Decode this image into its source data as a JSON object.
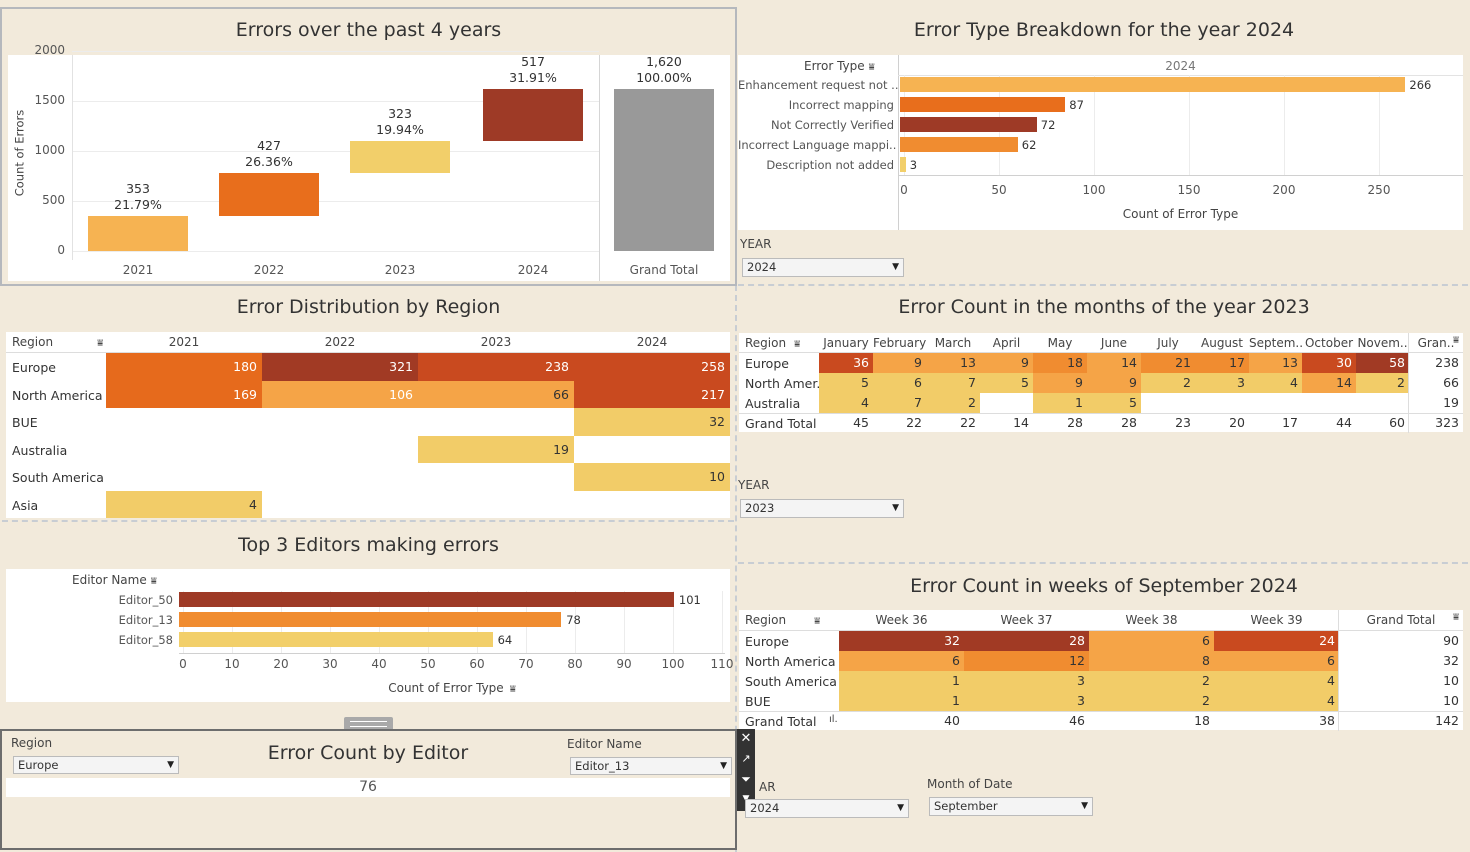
{
  "colors": {
    "c1": "#f6b352",
    "c2": "#e86e1c",
    "c3": "#f2cf6a",
    "c4": "#9e3a26",
    "gray": "#999999",
    "hm_dark": "#a13a24",
    "hm_mid": "#c94a1f",
    "hm_orange": "#e66a1c",
    "hm_lo": "#f5a447",
    "hm_lightest": "#f2cc68",
    "background": "#f2eadb"
  },
  "waterfall": {
    "title": "Errors over the past 4 years",
    "ylabel": "Count of Errors",
    "yticks": [
      "2000",
      "1500",
      "1000",
      "500",
      "0"
    ],
    "categories": [
      "2021",
      "2022",
      "2023",
      "2024",
      "Grand Total"
    ]
  },
  "chart_data": [
    {
      "type": "bar",
      "title": "Errors over the past 4 years",
      "ylabel": "Count of Errors",
      "categories": [
        "2021",
        "2022",
        "2023",
        "2024",
        "Grand Total"
      ],
      "values": [
        353,
        427,
        323,
        517,
        1620
      ],
      "value_labels": [
        "353",
        "427",
        "323",
        "517",
        "1,620"
      ],
      "percent_labels": [
        "21.79%",
        "26.36%",
        "19.94%",
        "31.91%",
        "100.00%"
      ],
      "ylim": [
        0,
        2000
      ]
    },
    {
      "type": "bar",
      "title": "Error Type Breakdown for the year 2024",
      "xlabel": "Count of Error Type",
      "categories": [
        "Enhancement request not ..",
        "Incorrect mapping",
        "Not Correctly Verified",
        "Incorrect Language mappi..",
        "Description not added"
      ],
      "values": [
        266,
        87,
        72,
        62,
        3
      ],
      "xlim": [
        0,
        290
      ]
    },
    {
      "type": "bar",
      "title": "Top 3 Editors making errors",
      "xlabel": "Count of Error Type",
      "categories": [
        "Editor_50",
        "Editor_13",
        "Editor_58"
      ],
      "values": [
        101,
        78,
        64
      ],
      "xlim": [
        0,
        112
      ]
    }
  ],
  "error_type": {
    "title": "Error Type Breakdown for the year 2024",
    "col_header": "Error Type",
    "year_header": "2024",
    "xlabel": "Count of Error Type",
    "xticks": [
      "0",
      "50",
      "100",
      "150",
      "200",
      "250"
    ]
  },
  "year_filter1": {
    "label": "YEAR",
    "value": "2024"
  },
  "region_dist": {
    "title": "Error Distribution by Region",
    "col_header": "Region",
    "years": [
      "2021",
      "2022",
      "2023",
      "2024"
    ],
    "rows": [
      {
        "region": "Europe",
        "values": [
          "180",
          "321",
          "238",
          "258"
        ]
      },
      {
        "region": "North America",
        "values": [
          "169",
          "106",
          "66",
          "217"
        ]
      },
      {
        "region": "BUE",
        "values": [
          "",
          "",
          "",
          "32"
        ]
      },
      {
        "region": "Australia",
        "values": [
          "",
          "",
          "19",
          ""
        ]
      },
      {
        "region": "South America",
        "values": [
          "",
          "",
          "",
          "10"
        ]
      },
      {
        "region": "Asia",
        "values": [
          "4",
          "",
          "",
          ""
        ]
      }
    ]
  },
  "months": {
    "title": "Error Count in the months of the year 2023",
    "col_header": "Region",
    "headers": [
      "January",
      "February",
      "March",
      "April",
      "May",
      "June",
      "July",
      "August",
      "Septem..",
      "October",
      "Novem..",
      "Gran.."
    ],
    "rows": [
      {
        "region": "Europe",
        "values": [
          "36",
          "9",
          "13",
          "9",
          "18",
          "14",
          "21",
          "17",
          "13",
          "30",
          "58"
        ],
        "total": "238"
      },
      {
        "region": "North Amer..",
        "values": [
          "5",
          "6",
          "7",
          "5",
          "9",
          "9",
          "2",
          "3",
          "4",
          "14",
          "2"
        ],
        "total": "66"
      },
      {
        "region": "Australia",
        "values": [
          "4",
          "7",
          "2",
          "",
          "1",
          "5",
          "",
          "",
          "",
          "",
          ""
        ],
        "total": "19"
      }
    ],
    "grand_total_label": "Grand Total",
    "grand_totals": [
      "45",
      "22",
      "22",
      "14",
      "28",
      "28",
      "23",
      "20",
      "17",
      "44",
      "60"
    ],
    "grand_total_total": "323"
  },
  "year_filter2": {
    "label": "YEAR",
    "value": "2023"
  },
  "editors": {
    "title": "Top 3 Editors making errors",
    "col_header": "Editor Name",
    "xlabel": "Count of Error Type",
    "xticks": [
      "0",
      "10",
      "20",
      "30",
      "40",
      "50",
      "60",
      "70",
      "80",
      "90",
      "100",
      "110"
    ]
  },
  "weeks": {
    "title": "Error Count in weeks of September 2024",
    "col_header": "Region",
    "headers": [
      "Week 36",
      "Week 37",
      "Week 38",
      "Week 39"
    ],
    "total_header": "Grand Total",
    "rows": [
      {
        "region": "Europe",
        "values": [
          "32",
          "28",
          "6",
          "24"
        ],
        "total": "90"
      },
      {
        "region": "North America",
        "values": [
          "6",
          "12",
          "8",
          "6"
        ],
        "total": "32"
      },
      {
        "region": "South America",
        "values": [
          "1",
          "3",
          "2",
          "4"
        ],
        "total": "10"
      },
      {
        "region": "BUE",
        "values": [
          "1",
          "3",
          "2",
          "4"
        ],
        "total": "10"
      }
    ],
    "grand_total_label": "Grand Total",
    "grand_totals": [
      "40",
      "46",
      "18",
      "38"
    ],
    "grand_total_total": "142"
  },
  "editor_count": {
    "title": "Error Count by Editor",
    "region_label": "Region",
    "region_value": "Europe",
    "editor_label": "Editor Name",
    "editor_value": "Editor_13",
    "value": "76"
  },
  "bottom_filters": {
    "year_label": "AR",
    "year_value": "2024",
    "month_label": "Month of Date",
    "month_value": "September"
  }
}
